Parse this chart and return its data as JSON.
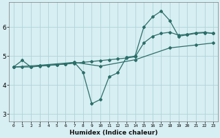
{
  "xlabel": "Humidex (Indice chaleur)",
  "background_color": "#d7eef2",
  "grid_color": "#aed4da",
  "line_color": "#2a6e68",
  "xlim": [
    -0.5,
    23.5
  ],
  "ylim": [
    2.75,
    6.85
  ],
  "xticks": [
    0,
    1,
    2,
    3,
    4,
    5,
    6,
    7,
    8,
    9,
    10,
    11,
    12,
    13,
    14,
    15,
    16,
    17,
    18,
    19,
    20,
    21,
    22,
    23
  ],
  "yticks": [
    3,
    4,
    5,
    6
  ],
  "series1_x": [
    0,
    1,
    2,
    3,
    4,
    5,
    6,
    7,
    8,
    9,
    10,
    11,
    12,
    13,
    14,
    15,
    16,
    17,
    18,
    19,
    20,
    21,
    22,
    23
  ],
  "series1_y": [
    4.62,
    4.85,
    4.62,
    4.66,
    4.68,
    4.7,
    4.72,
    4.78,
    4.44,
    3.35,
    3.5,
    4.28,
    4.42,
    4.95,
    5.0,
    6.0,
    6.35,
    6.55,
    6.22,
    5.68,
    5.73,
    5.78,
    5.8,
    5.78
  ],
  "series2_x": [
    0,
    3,
    7,
    10,
    14,
    18,
    21,
    23
  ],
  "series2_y": [
    4.62,
    4.68,
    4.78,
    4.65,
    4.87,
    5.28,
    5.38,
    5.45
  ],
  "series3_x": [
    0,
    1,
    2,
    3,
    4,
    5,
    6,
    7,
    8,
    9,
    10,
    11,
    12,
    13,
    14,
    15,
    16,
    17,
    18,
    19,
    20,
    21,
    22,
    23
  ],
  "series3_y": [
    4.62,
    4.62,
    4.62,
    4.65,
    4.67,
    4.7,
    4.72,
    4.75,
    4.78,
    4.81,
    4.84,
    4.87,
    4.9,
    4.93,
    4.97,
    5.45,
    5.68,
    5.78,
    5.82,
    5.72,
    5.75,
    5.8,
    5.82,
    5.78
  ]
}
